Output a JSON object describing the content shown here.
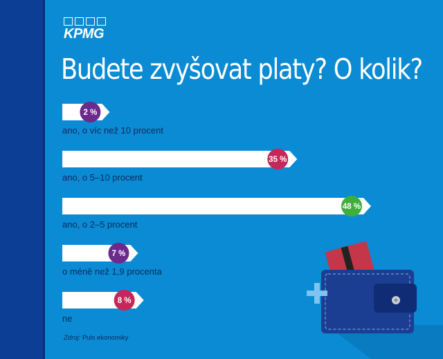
{
  "brand": {
    "logo_text": "KPMG"
  },
  "page": {
    "title": "Budete zvyšovat platy? O kolik?"
  },
  "source": {
    "prefix": "Zdroj:",
    "name": "Puls ekonomiky"
  },
  "colors": {
    "background": "#0b8bd3",
    "left_band": "#0c3e96",
    "bar": "#ffffff",
    "purple": "#6b2a8c",
    "crimson": "#c4285a",
    "green": "#3fae3a",
    "label": "#0d2a5a"
  },
  "chart_data": {
    "type": "bar",
    "orientation": "horizontal",
    "title": "Budete zvyšovat platy? O kolik?",
    "unit": "%",
    "categories": [
      "ano, o víc než 10 procent",
      "ano, o 5–10 procent",
      "ano, o 2–5 procent",
      "o méně než 1,9 procenta",
      "ne"
    ],
    "values": [
      2,
      35,
      48,
      7,
      8
    ],
    "value_labels": [
      "2 %",
      "35 %",
      "48 %",
      "7 %",
      "8 %"
    ],
    "badge_colors": [
      "#6b2a8c",
      "#c4285a",
      "#3fae3a",
      "#6b2a8c",
      "#c4285a"
    ],
    "xlim": [
      0,
      48
    ]
  },
  "decoration": {
    "illustration": "wallet-with-card",
    "icon": "plus-icon"
  }
}
